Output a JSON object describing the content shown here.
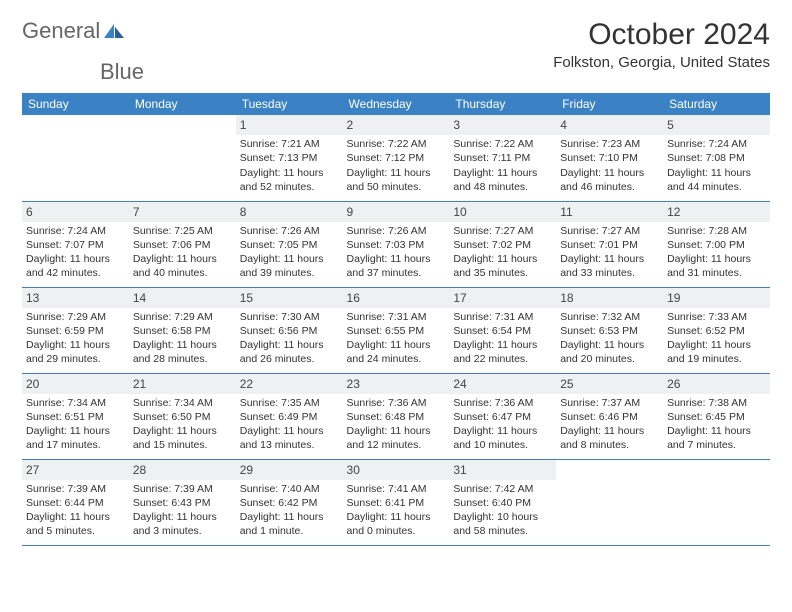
{
  "logo": {
    "text1": "General",
    "text2": "Blue",
    "icon_color": "#3b82c4"
  },
  "title": "October 2024",
  "location": "Folkston, Georgia, United States",
  "colors": {
    "header_bg": "#3b82c4",
    "header_text": "#ffffff",
    "border": "#3b82c4",
    "shade_bg": "#eef0f2",
    "text": "#333333"
  },
  "weekdays": [
    "Sunday",
    "Monday",
    "Tuesday",
    "Wednesday",
    "Thursday",
    "Friday",
    "Saturday"
  ],
  "weeks": [
    [
      null,
      null,
      {
        "n": "1",
        "sr": "Sunrise: 7:21 AM",
        "ss": "Sunset: 7:13 PM",
        "dl": "Daylight: 11 hours and 52 minutes."
      },
      {
        "n": "2",
        "sr": "Sunrise: 7:22 AM",
        "ss": "Sunset: 7:12 PM",
        "dl": "Daylight: 11 hours and 50 minutes."
      },
      {
        "n": "3",
        "sr": "Sunrise: 7:22 AM",
        "ss": "Sunset: 7:11 PM",
        "dl": "Daylight: 11 hours and 48 minutes."
      },
      {
        "n": "4",
        "sr": "Sunrise: 7:23 AM",
        "ss": "Sunset: 7:10 PM",
        "dl": "Daylight: 11 hours and 46 minutes."
      },
      {
        "n": "5",
        "sr": "Sunrise: 7:24 AM",
        "ss": "Sunset: 7:08 PM",
        "dl": "Daylight: 11 hours and 44 minutes."
      }
    ],
    [
      {
        "n": "6",
        "sr": "Sunrise: 7:24 AM",
        "ss": "Sunset: 7:07 PM",
        "dl": "Daylight: 11 hours and 42 minutes."
      },
      {
        "n": "7",
        "sr": "Sunrise: 7:25 AM",
        "ss": "Sunset: 7:06 PM",
        "dl": "Daylight: 11 hours and 40 minutes."
      },
      {
        "n": "8",
        "sr": "Sunrise: 7:26 AM",
        "ss": "Sunset: 7:05 PM",
        "dl": "Daylight: 11 hours and 39 minutes."
      },
      {
        "n": "9",
        "sr": "Sunrise: 7:26 AM",
        "ss": "Sunset: 7:03 PM",
        "dl": "Daylight: 11 hours and 37 minutes."
      },
      {
        "n": "10",
        "sr": "Sunrise: 7:27 AM",
        "ss": "Sunset: 7:02 PM",
        "dl": "Daylight: 11 hours and 35 minutes."
      },
      {
        "n": "11",
        "sr": "Sunrise: 7:27 AM",
        "ss": "Sunset: 7:01 PM",
        "dl": "Daylight: 11 hours and 33 minutes."
      },
      {
        "n": "12",
        "sr": "Sunrise: 7:28 AM",
        "ss": "Sunset: 7:00 PM",
        "dl": "Daylight: 11 hours and 31 minutes."
      }
    ],
    [
      {
        "n": "13",
        "sr": "Sunrise: 7:29 AM",
        "ss": "Sunset: 6:59 PM",
        "dl": "Daylight: 11 hours and 29 minutes."
      },
      {
        "n": "14",
        "sr": "Sunrise: 7:29 AM",
        "ss": "Sunset: 6:58 PM",
        "dl": "Daylight: 11 hours and 28 minutes."
      },
      {
        "n": "15",
        "sr": "Sunrise: 7:30 AM",
        "ss": "Sunset: 6:56 PM",
        "dl": "Daylight: 11 hours and 26 minutes."
      },
      {
        "n": "16",
        "sr": "Sunrise: 7:31 AM",
        "ss": "Sunset: 6:55 PM",
        "dl": "Daylight: 11 hours and 24 minutes."
      },
      {
        "n": "17",
        "sr": "Sunrise: 7:31 AM",
        "ss": "Sunset: 6:54 PM",
        "dl": "Daylight: 11 hours and 22 minutes."
      },
      {
        "n": "18",
        "sr": "Sunrise: 7:32 AM",
        "ss": "Sunset: 6:53 PM",
        "dl": "Daylight: 11 hours and 20 minutes."
      },
      {
        "n": "19",
        "sr": "Sunrise: 7:33 AM",
        "ss": "Sunset: 6:52 PM",
        "dl": "Daylight: 11 hours and 19 minutes."
      }
    ],
    [
      {
        "n": "20",
        "sr": "Sunrise: 7:34 AM",
        "ss": "Sunset: 6:51 PM",
        "dl": "Daylight: 11 hours and 17 minutes."
      },
      {
        "n": "21",
        "sr": "Sunrise: 7:34 AM",
        "ss": "Sunset: 6:50 PM",
        "dl": "Daylight: 11 hours and 15 minutes."
      },
      {
        "n": "22",
        "sr": "Sunrise: 7:35 AM",
        "ss": "Sunset: 6:49 PM",
        "dl": "Daylight: 11 hours and 13 minutes."
      },
      {
        "n": "23",
        "sr": "Sunrise: 7:36 AM",
        "ss": "Sunset: 6:48 PM",
        "dl": "Daylight: 11 hours and 12 minutes."
      },
      {
        "n": "24",
        "sr": "Sunrise: 7:36 AM",
        "ss": "Sunset: 6:47 PM",
        "dl": "Daylight: 11 hours and 10 minutes."
      },
      {
        "n": "25",
        "sr": "Sunrise: 7:37 AM",
        "ss": "Sunset: 6:46 PM",
        "dl": "Daylight: 11 hours and 8 minutes."
      },
      {
        "n": "26",
        "sr": "Sunrise: 7:38 AM",
        "ss": "Sunset: 6:45 PM",
        "dl": "Daylight: 11 hours and 7 minutes."
      }
    ],
    [
      {
        "n": "27",
        "sr": "Sunrise: 7:39 AM",
        "ss": "Sunset: 6:44 PM",
        "dl": "Daylight: 11 hours and 5 minutes."
      },
      {
        "n": "28",
        "sr": "Sunrise: 7:39 AM",
        "ss": "Sunset: 6:43 PM",
        "dl": "Daylight: 11 hours and 3 minutes."
      },
      {
        "n": "29",
        "sr": "Sunrise: 7:40 AM",
        "ss": "Sunset: 6:42 PM",
        "dl": "Daylight: 11 hours and 1 minute."
      },
      {
        "n": "30",
        "sr": "Sunrise: 7:41 AM",
        "ss": "Sunset: 6:41 PM",
        "dl": "Daylight: 11 hours and 0 minutes."
      },
      {
        "n": "31",
        "sr": "Sunrise: 7:42 AM",
        "ss": "Sunset: 6:40 PM",
        "dl": "Daylight: 10 hours and 58 minutes."
      },
      null,
      null
    ]
  ]
}
